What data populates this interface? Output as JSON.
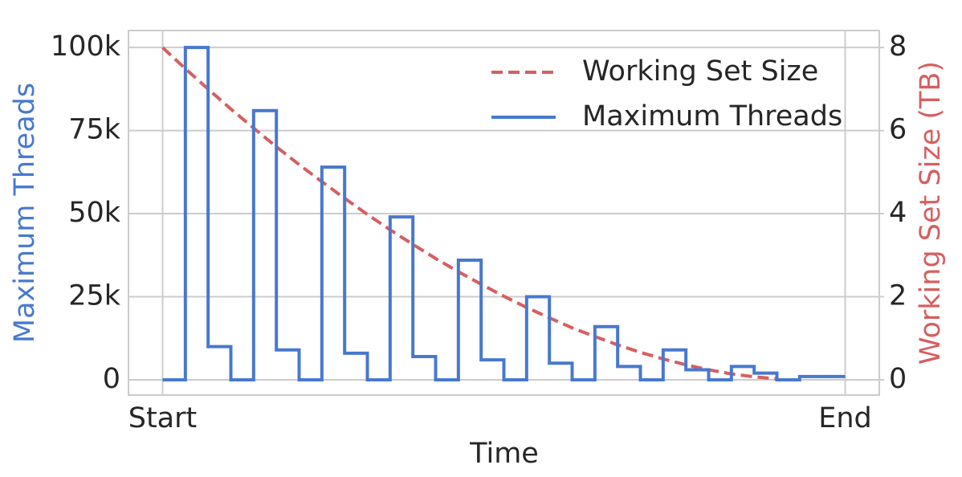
{
  "chart_data": {
    "type": "line",
    "xlabel": "Time",
    "ylabel": "Maximum Threads",
    "y2label": "Working Set Size (TB)",
    "xlim": [
      -1.5,
      31.5
    ],
    "xticks": [
      {
        "value": 0,
        "label": "Start"
      },
      {
        "value": 30,
        "label": "End"
      }
    ],
    "ylim": [
      -4600,
      105100
    ],
    "yticks": [
      0,
      {
        "value": 25000,
        "label": "25k"
      },
      {
        "value": 50000,
        "label": "50k"
      },
      {
        "value": 75000,
        "label": "75k"
      },
      {
        "value": 100000,
        "label": "100k"
      }
    ],
    "y2lim": [
      -0.37,
      8.41
    ],
    "y2ticks": [
      0,
      2,
      4,
      6,
      8
    ],
    "grid": true,
    "legend": "upper right",
    "ylabel_color": "#4878cf",
    "y2label_color": "#d65f5f",
    "series": [
      {
        "name": "Working Set Size",
        "color": "#d65f5f",
        "style": "dashed",
        "axis": "y2",
        "x": [
          0,
          1,
          2,
          3,
          4,
          5,
          6,
          7,
          8,
          9,
          10,
          11,
          12,
          13,
          14,
          15,
          16,
          17,
          18,
          19,
          20,
          21,
          22,
          23,
          24,
          25,
          26,
          27
        ],
        "values": [
          8,
          7.49,
          7.0,
          6.52,
          6.06,
          5.61,
          5.18,
          4.77,
          4.37,
          3.98,
          3.61,
          3.26,
          2.92,
          2.6,
          2.3,
          2.01,
          1.74,
          1.49,
          1.25,
          1.04,
          0.84,
          0.66,
          0.5,
          0.36,
          0.24,
          0.14,
          0.07,
          0.02
        ]
      },
      {
        "name": "Maximum Threads",
        "color": "#4878cf",
        "style": "steps-post",
        "axis": "y",
        "x": [
          0,
          1,
          2,
          3,
          4,
          5,
          6,
          7,
          8,
          9,
          10,
          11,
          12,
          13,
          14,
          15,
          16,
          17,
          18,
          19,
          20,
          21,
          22,
          23,
          24,
          25,
          26,
          27,
          28,
          29,
          30
        ],
        "values": [
          0,
          100000,
          10000,
          0,
          81000,
          9000,
          0,
          64000,
          8000,
          0,
          49000,
          7000,
          0,
          36000,
          6000,
          0,
          25000,
          5000,
          0,
          16000,
          4000,
          0,
          9000,
          3000,
          0,
          4000,
          2000,
          0,
          1000,
          1000,
          1000
        ]
      }
    ]
  }
}
